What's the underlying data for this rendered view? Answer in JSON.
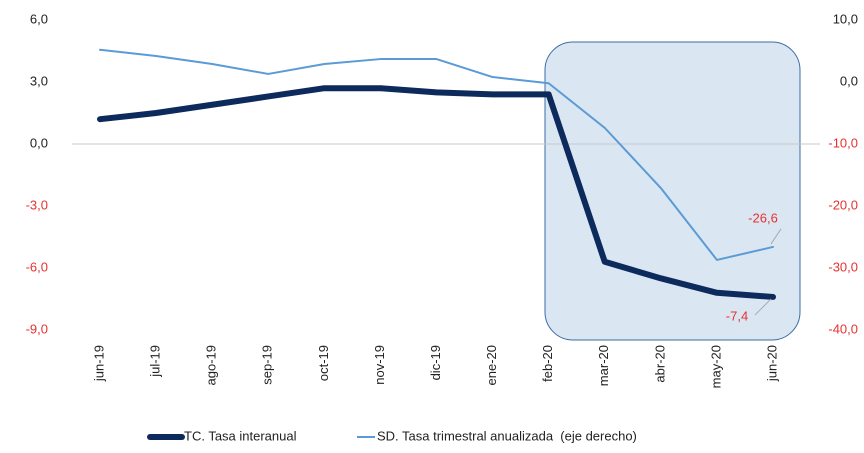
{
  "chart_data": {
    "type": "line",
    "categories": [
      "jun-19",
      "jul-19",
      "ago-19",
      "sep-19",
      "oct-19",
      "nov-19",
      "dic-19",
      "ene-20",
      "feb-20",
      "mar-20",
      "abr-20",
      "may-20",
      "jun-20"
    ],
    "series": [
      {
        "name": "TC. Tasa interanual",
        "color": "#0d2a5c",
        "axis": "y",
        "values": [
          1.2,
          1.5,
          1.9,
          2.3,
          2.7,
          2.7,
          2.5,
          2.4,
          2.4,
          -5.7,
          -6.5,
          -7.2,
          -7.4
        ],
        "value_labels": [
          null,
          null,
          null,
          null,
          null,
          null,
          null,
          null,
          null,
          null,
          null,
          null,
          "-7,4"
        ]
      },
      {
        "name": "SD. Tasa trimestral anualizada  (eje derecho)",
        "color": "#5b9bd5",
        "axis": "y2",
        "values": [
          5.2,
          4.2,
          2.9,
          1.3,
          2.9,
          3.7,
          3.7,
          0.8,
          -0.2,
          -7.4,
          -17.1,
          -28.7,
          -26.6
        ],
        "value_labels": [
          null,
          null,
          null,
          null,
          null,
          null,
          null,
          null,
          null,
          null,
          null,
          null,
          "-26,6"
        ]
      }
    ],
    "ylim": [
      -9,
      6
    ],
    "yticks": [
      {
        "value": 6,
        "label": "6,0"
      },
      {
        "value": 3,
        "label": "3,0"
      },
      {
        "value": 0,
        "label": "0,0"
      },
      {
        "value": -3,
        "label": "-3,0"
      },
      {
        "value": -6,
        "label": "-6,0"
      },
      {
        "value": -9,
        "label": "-9,0"
      }
    ],
    "y2lim": [
      -40,
      10
    ],
    "y2ticks": [
      {
        "value": 10,
        "label": "10,0"
      },
      {
        "value": 0,
        "label": "0,0"
      },
      {
        "value": -10,
        "label": "-10,0"
      },
      {
        "value": -20,
        "label": "-20,0"
      },
      {
        "value": -30,
        "label": "-30,0"
      },
      {
        "value": -40,
        "label": "-40,0"
      }
    ],
    "legend": "bottom"
  }
}
